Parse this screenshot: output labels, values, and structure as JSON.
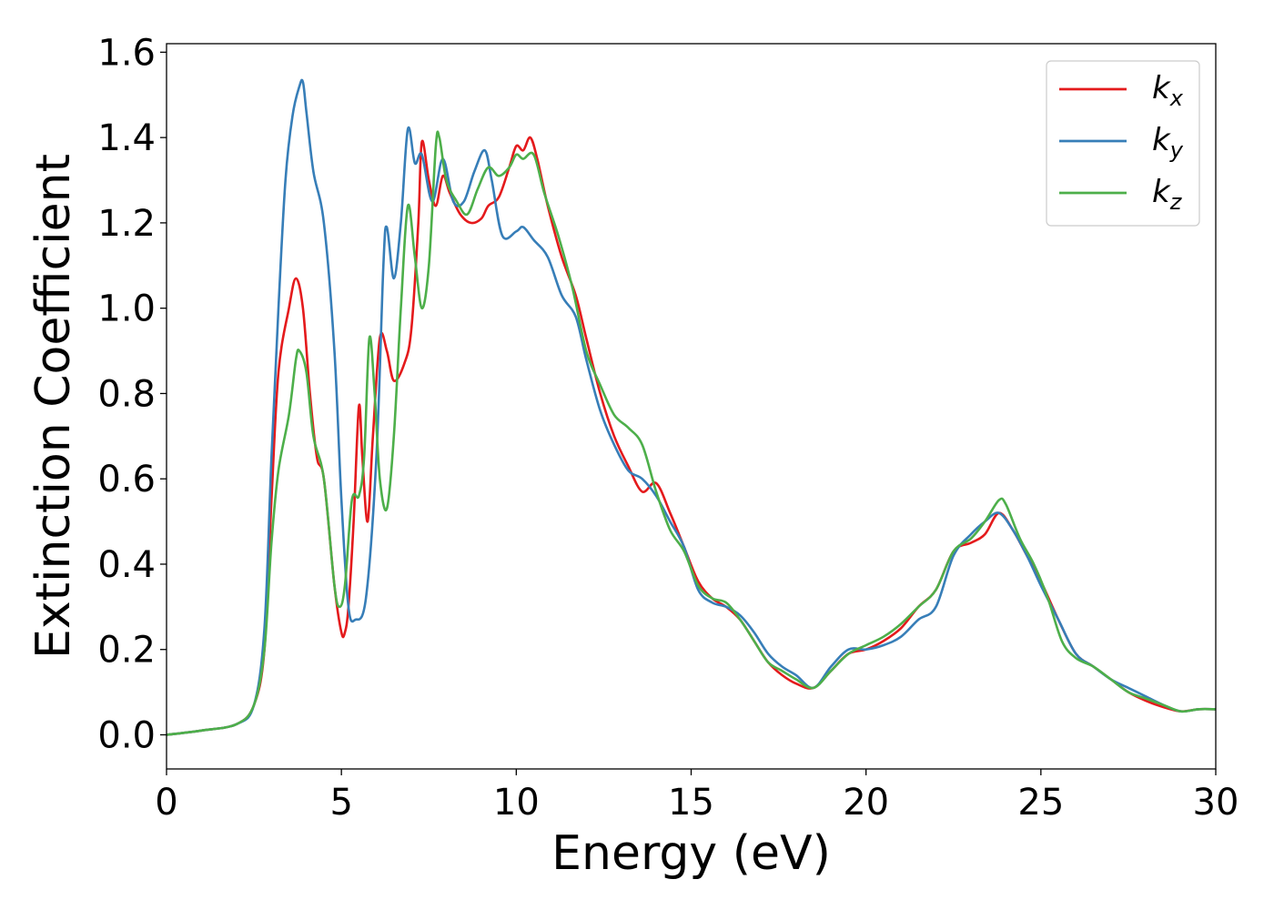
{
  "chart_data": {
    "type": "line",
    "title": "",
    "xlabel": "Energy (eV)",
    "ylabel": "Extinction Coefficient",
    "xlim": [
      0,
      30
    ],
    "ylim": [
      -0.08,
      1.62
    ],
    "xticks": [
      "0",
      "5",
      "10",
      "15",
      "20",
      "25",
      "30"
    ],
    "yticks": [
      "0.0",
      "0.2",
      "0.4",
      "0.6",
      "0.8",
      "1.0",
      "1.2",
      "1.4",
      "1.6"
    ],
    "grid": false,
    "legend": {
      "position": "top-right",
      "entries": [
        {
          "base": "k",
          "sub": "x",
          "color": "#e41a1c"
        },
        {
          "base": "k",
          "sub": "y",
          "color": "#377eb8"
        },
        {
          "base": "k",
          "sub": "z",
          "color": "#4daf4a"
        }
      ]
    },
    "series": [
      {
        "name": "kx",
        "color": "#e41a1c",
        "points": [
          [
            0,
            0
          ],
          [
            1,
            0.01
          ],
          [
            2,
            0.025
          ],
          [
            2.5,
            0.07
          ],
          [
            2.8,
            0.2
          ],
          [
            3.0,
            0.55
          ],
          [
            3.2,
            0.85
          ],
          [
            3.5,
            1.0
          ],
          [
            3.7,
            1.07
          ],
          [
            3.9,
            1.0
          ],
          [
            4.1,
            0.8
          ],
          [
            4.3,
            0.65
          ],
          [
            4.5,
            0.6
          ],
          [
            4.8,
            0.35
          ],
          [
            5.0,
            0.24
          ],
          [
            5.1,
            0.24
          ],
          [
            5.2,
            0.3
          ],
          [
            5.35,
            0.5
          ],
          [
            5.5,
            0.77
          ],
          [
            5.6,
            0.65
          ],
          [
            5.75,
            0.5
          ],
          [
            5.9,
            0.7
          ],
          [
            6.1,
            0.93
          ],
          [
            6.3,
            0.9
          ],
          [
            6.5,
            0.83
          ],
          [
            6.8,
            0.87
          ],
          [
            7.0,
            0.95
          ],
          [
            7.2,
            1.2
          ],
          [
            7.3,
            1.39
          ],
          [
            7.5,
            1.3
          ],
          [
            7.7,
            1.24
          ],
          [
            7.9,
            1.31
          ],
          [
            8.1,
            1.27
          ],
          [
            8.4,
            1.22
          ],
          [
            8.7,
            1.2
          ],
          [
            9.0,
            1.21
          ],
          [
            9.2,
            1.24
          ],
          [
            9.5,
            1.26
          ],
          [
            9.8,
            1.33
          ],
          [
            10.0,
            1.38
          ],
          [
            10.2,
            1.37
          ],
          [
            10.4,
            1.4
          ],
          [
            10.6,
            1.35
          ],
          [
            10.9,
            1.24
          ],
          [
            11.3,
            1.12
          ],
          [
            11.7,
            1.03
          ],
          [
            12.0,
            0.93
          ],
          [
            12.4,
            0.8
          ],
          [
            12.8,
            0.7
          ],
          [
            13.2,
            0.63
          ],
          [
            13.6,
            0.57
          ],
          [
            14.0,
            0.59
          ],
          [
            14.4,
            0.52
          ],
          [
            14.8,
            0.44
          ],
          [
            15.2,
            0.36
          ],
          [
            15.6,
            0.32
          ],
          [
            16.0,
            0.3
          ],
          [
            16.4,
            0.27
          ],
          [
            16.8,
            0.22
          ],
          [
            17.2,
            0.17
          ],
          [
            17.6,
            0.14
          ],
          [
            18.0,
            0.12
          ],
          [
            18.5,
            0.11
          ],
          [
            19.0,
            0.15
          ],
          [
            19.5,
            0.19
          ],
          [
            20.0,
            0.2
          ],
          [
            20.5,
            0.22
          ],
          [
            21.0,
            0.25
          ],
          [
            21.5,
            0.3
          ],
          [
            22.0,
            0.34
          ],
          [
            22.5,
            0.43
          ],
          [
            23.0,
            0.45
          ],
          [
            23.4,
            0.47
          ],
          [
            23.8,
            0.52
          ],
          [
            24.2,
            0.48
          ],
          [
            24.6,
            0.42
          ],
          [
            25.0,
            0.36
          ],
          [
            25.5,
            0.27
          ],
          [
            26.0,
            0.19
          ],
          [
            26.5,
            0.16
          ],
          [
            27.0,
            0.13
          ],
          [
            27.5,
            0.1
          ],
          [
            28.0,
            0.08
          ],
          [
            28.5,
            0.065
          ],
          [
            29.0,
            0.055
          ],
          [
            29.5,
            0.06
          ],
          [
            30.0,
            0.06
          ]
        ]
      },
      {
        "name": "ky",
        "color": "#377eb8",
        "points": [
          [
            0,
            0
          ],
          [
            1,
            0.01
          ],
          [
            2,
            0.025
          ],
          [
            2.5,
            0.07
          ],
          [
            2.8,
            0.25
          ],
          [
            3.0,
            0.65
          ],
          [
            3.2,
            1.0
          ],
          [
            3.4,
            1.3
          ],
          [
            3.6,
            1.45
          ],
          [
            3.8,
            1.52
          ],
          [
            3.9,
            1.53
          ],
          [
            4.0,
            1.46
          ],
          [
            4.2,
            1.32
          ],
          [
            4.5,
            1.2
          ],
          [
            4.8,
            0.9
          ],
          [
            5.0,
            0.55
          ],
          [
            5.2,
            0.3
          ],
          [
            5.4,
            0.27
          ],
          [
            5.7,
            0.32
          ],
          [
            6.0,
            0.65
          ],
          [
            6.2,
            1.1
          ],
          [
            6.3,
            1.19
          ],
          [
            6.5,
            1.07
          ],
          [
            6.7,
            1.2
          ],
          [
            6.9,
            1.42
          ],
          [
            7.1,
            1.34
          ],
          [
            7.3,
            1.36
          ],
          [
            7.6,
            1.25
          ],
          [
            7.9,
            1.35
          ],
          [
            8.2,
            1.25
          ],
          [
            8.5,
            1.25
          ],
          [
            8.8,
            1.32
          ],
          [
            9.1,
            1.37
          ],
          [
            9.3,
            1.3
          ],
          [
            9.6,
            1.17
          ],
          [
            10.0,
            1.18
          ],
          [
            10.2,
            1.19
          ],
          [
            10.5,
            1.16
          ],
          [
            10.9,
            1.12
          ],
          [
            11.3,
            1.03
          ],
          [
            11.7,
            0.98
          ],
          [
            12.0,
            0.88
          ],
          [
            12.4,
            0.76
          ],
          [
            12.8,
            0.68
          ],
          [
            13.2,
            0.62
          ],
          [
            13.6,
            0.6
          ],
          [
            14.0,
            0.56
          ],
          [
            14.4,
            0.5
          ],
          [
            14.8,
            0.44
          ],
          [
            15.2,
            0.34
          ],
          [
            15.6,
            0.31
          ],
          [
            16.0,
            0.3
          ],
          [
            16.4,
            0.28
          ],
          [
            16.8,
            0.24
          ],
          [
            17.2,
            0.19
          ],
          [
            17.6,
            0.16
          ],
          [
            18.0,
            0.14
          ],
          [
            18.5,
            0.11
          ],
          [
            19.0,
            0.16
          ],
          [
            19.5,
            0.2
          ],
          [
            20.0,
            0.2
          ],
          [
            20.5,
            0.21
          ],
          [
            21.0,
            0.23
          ],
          [
            21.5,
            0.27
          ],
          [
            22.0,
            0.3
          ],
          [
            22.5,
            0.42
          ],
          [
            23.0,
            0.47
          ],
          [
            23.4,
            0.5
          ],
          [
            23.8,
            0.52
          ],
          [
            24.2,
            0.48
          ],
          [
            24.6,
            0.42
          ],
          [
            25.0,
            0.35
          ],
          [
            25.5,
            0.27
          ],
          [
            26.0,
            0.19
          ],
          [
            26.5,
            0.16
          ],
          [
            27.0,
            0.13
          ],
          [
            27.5,
            0.11
          ],
          [
            28.0,
            0.09
          ],
          [
            28.5,
            0.07
          ],
          [
            29.0,
            0.055
          ],
          [
            29.5,
            0.06
          ],
          [
            30.0,
            0.06
          ]
        ]
      },
      {
        "name": "kz",
        "color": "#4daf4a",
        "points": [
          [
            0,
            0
          ],
          [
            1,
            0.01
          ],
          [
            2,
            0.025
          ],
          [
            2.5,
            0.07
          ],
          [
            2.8,
            0.2
          ],
          [
            3.0,
            0.45
          ],
          [
            3.2,
            0.62
          ],
          [
            3.5,
            0.75
          ],
          [
            3.7,
            0.88
          ],
          [
            3.8,
            0.9
          ],
          [
            4.0,
            0.85
          ],
          [
            4.2,
            0.7
          ],
          [
            4.5,
            0.6
          ],
          [
            4.8,
            0.35
          ],
          [
            4.95,
            0.3
          ],
          [
            5.1,
            0.35
          ],
          [
            5.3,
            0.55
          ],
          [
            5.5,
            0.56
          ],
          [
            5.65,
            0.65
          ],
          [
            5.8,
            0.93
          ],
          [
            5.95,
            0.8
          ],
          [
            6.1,
            0.6
          ],
          [
            6.3,
            0.53
          ],
          [
            6.5,
            0.7
          ],
          [
            6.7,
            1.0
          ],
          [
            6.9,
            1.24
          ],
          [
            7.1,
            1.12
          ],
          [
            7.3,
            1.0
          ],
          [
            7.5,
            1.1
          ],
          [
            7.7,
            1.38
          ],
          [
            7.8,
            1.4
          ],
          [
            8.0,
            1.3
          ],
          [
            8.3,
            1.25
          ],
          [
            8.6,
            1.22
          ],
          [
            8.9,
            1.28
          ],
          [
            9.2,
            1.33
          ],
          [
            9.5,
            1.31
          ],
          [
            9.8,
            1.33
          ],
          [
            10.0,
            1.36
          ],
          [
            10.2,
            1.35
          ],
          [
            10.5,
            1.36
          ],
          [
            10.8,
            1.27
          ],
          [
            11.2,
            1.17
          ],
          [
            11.6,
            1.05
          ],
          [
            12.0,
            0.9
          ],
          [
            12.4,
            0.82
          ],
          [
            12.8,
            0.75
          ],
          [
            13.2,
            0.72
          ],
          [
            13.6,
            0.68
          ],
          [
            14.0,
            0.57
          ],
          [
            14.4,
            0.48
          ],
          [
            14.8,
            0.43
          ],
          [
            15.2,
            0.35
          ],
          [
            15.6,
            0.32
          ],
          [
            16.0,
            0.31
          ],
          [
            16.4,
            0.27
          ],
          [
            16.8,
            0.22
          ],
          [
            17.2,
            0.17
          ],
          [
            17.6,
            0.15
          ],
          [
            18.0,
            0.13
          ],
          [
            18.5,
            0.11
          ],
          [
            19.0,
            0.15
          ],
          [
            19.5,
            0.19
          ],
          [
            20.0,
            0.21
          ],
          [
            20.5,
            0.23
          ],
          [
            21.0,
            0.26
          ],
          [
            21.5,
            0.3
          ],
          [
            22.0,
            0.34
          ],
          [
            22.5,
            0.43
          ],
          [
            23.0,
            0.46
          ],
          [
            23.4,
            0.5
          ],
          [
            23.8,
            0.55
          ],
          [
            24.0,
            0.54
          ],
          [
            24.4,
            0.46
          ],
          [
            24.8,
            0.4
          ],
          [
            25.2,
            0.32
          ],
          [
            25.6,
            0.22
          ],
          [
            26.0,
            0.18
          ],
          [
            26.5,
            0.16
          ],
          [
            27.0,
            0.13
          ],
          [
            27.5,
            0.1
          ],
          [
            28.0,
            0.085
          ],
          [
            28.5,
            0.07
          ],
          [
            29.0,
            0.055
          ],
          [
            29.5,
            0.06
          ],
          [
            30.0,
            0.06
          ]
        ]
      }
    ]
  }
}
